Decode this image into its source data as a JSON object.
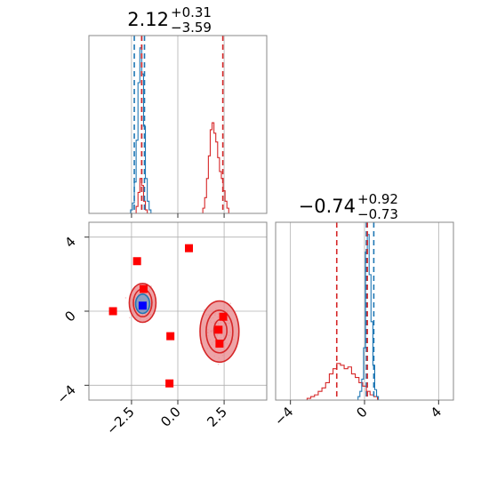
{
  "chart_data": {
    "type": "corner",
    "colors": {
      "blue": "#1f77b4",
      "red": "#d62728",
      "red_fill": "#e8858a",
      "blue_fill": "#6e9ec9"
    },
    "panels": [
      {
        "id": "hist-x",
        "type": "histogram",
        "title_main": "2.12",
        "title_sup": "+0.31",
        "title_sub": "−3.59",
        "xlim": [
          -4.8,
          4.8
        ],
        "xticks": [
          -2.5,
          0.0,
          2.5
        ],
        "gridlines_x": [
          -2.5,
          0.0,
          2.5
        ],
        "quantile_lines": {
          "blue": [
            -2.35,
            -1.95,
            -1.8
          ],
          "red": [
            -1.95,
            2.43
          ]
        },
        "hist_blue": {
          "bins": [
            [
              -2.6,
              0.0
            ],
            [
              -2.5,
              0.02
            ],
            [
              -2.4,
              0.06
            ],
            [
              -2.3,
              0.18
            ],
            [
              -2.2,
              0.42
            ],
            [
              -2.1,
              0.75
            ],
            [
              -2.0,
              0.95
            ],
            [
              -1.9,
              0.8
            ],
            [
              -1.8,
              0.5
            ],
            [
              -1.7,
              0.2
            ],
            [
              -1.6,
              0.07
            ],
            [
              -1.5,
              0.02
            ],
            [
              -1.4,
              0.0
            ]
          ]
        },
        "hist_red": {
          "bins": [
            [
              -2.3,
              0.0
            ],
            [
              -2.2,
              0.04
            ],
            [
              -2.1,
              0.12
            ],
            [
              -2.0,
              0.2
            ],
            [
              -1.9,
              0.16
            ],
            [
              -1.8,
              0.07
            ],
            [
              -1.7,
              0.02
            ],
            [
              -1.6,
              0.0
            ],
            [
              1.3,
              0.0
            ],
            [
              1.4,
              0.03
            ],
            [
              1.5,
              0.09
            ],
            [
              1.6,
              0.2
            ],
            [
              1.7,
              0.33
            ],
            [
              1.8,
              0.48
            ],
            [
              1.9,
              0.52
            ],
            [
              2.0,
              0.46
            ],
            [
              2.1,
              0.41
            ],
            [
              2.2,
              0.32
            ],
            [
              2.3,
              0.24
            ],
            [
              2.4,
              0.2
            ],
            [
              2.5,
              0.13
            ],
            [
              2.6,
              0.07
            ],
            [
              2.7,
              0.03
            ],
            [
              2.8,
              0.0
            ]
          ]
        }
      },
      {
        "id": "scatter-xy",
        "type": "2d-density",
        "xlim": [
          -4.8,
          4.8
        ],
        "ylim": [
          -4.8,
          4.8
        ],
        "xticks": [
          -2.5,
          0.0,
          2.5
        ],
        "xtick_labels": [
          "−2.5",
          "0.0",
          "2.5"
        ],
        "yticks": [
          -4,
          0,
          4
        ],
        "ytick_labels": [
          "−4",
          "0",
          "4"
        ],
        "gridlines_x": [
          -2.5,
          0.0,
          2.5
        ],
        "gridlines_y": [
          -4,
          0,
          4
        ],
        "contours": [
          {
            "color": "red",
            "cx": -1.9,
            "cy": 0.45,
            "rx": 0.72,
            "ry": 1.05,
            "fill": true
          },
          {
            "color": "red",
            "cx": -1.9,
            "cy": 0.45,
            "rx": 0.5,
            "ry": 0.75,
            "fill": false
          },
          {
            "color": "blue",
            "cx": -1.9,
            "cy": 0.4,
            "rx": 0.38,
            "ry": 0.52,
            "fill": true
          },
          {
            "color": "red",
            "cx": 2.25,
            "cy": -1.1,
            "rx": 1.05,
            "ry": 1.65,
            "fill": true
          },
          {
            "color": "red",
            "cx": 2.25,
            "cy": -1.1,
            "rx": 0.72,
            "ry": 1.15,
            "fill": false
          },
          {
            "color": "red",
            "cx": 2.3,
            "cy": -1.05,
            "rx": 0.35,
            "ry": 0.6,
            "fill": false
          }
        ],
        "markers_red": [
          [
            -3.5,
            0.0
          ],
          [
            -2.2,
            2.7
          ],
          [
            -1.85,
            1.2
          ],
          [
            -0.4,
            -1.35
          ],
          [
            0.6,
            3.4
          ],
          [
            -0.45,
            -3.9
          ],
          [
            2.45,
            -0.3
          ],
          [
            2.2,
            -1.0
          ],
          [
            2.25,
            -1.75
          ]
        ],
        "markers_blue": [
          [
            -1.9,
            0.3
          ]
        ]
      },
      {
        "id": "hist-y",
        "type": "histogram",
        "title_main": "−0.74",
        "title_sup": "+0.92",
        "title_sub": "−0.73",
        "xlim": [
          -4.8,
          4.8
        ],
        "xticks": [
          -4,
          0,
          4
        ],
        "xtick_labels": [
          "−4",
          "0",
          "4"
        ],
        "gridlines_x": [
          -4,
          0,
          4
        ],
        "quantile_lines": {
          "blue": [
            0.1,
            0.5
          ],
          "red": [
            -1.5,
            0.15
          ]
        },
        "hist_blue": {
          "bins": [
            [
              -0.4,
              0.0
            ],
            [
              -0.3,
              0.02
            ],
            [
              -0.2,
              0.05
            ],
            [
              -0.1,
              0.12
            ],
            [
              0.0,
              0.3
            ],
            [
              0.1,
              0.85
            ],
            [
              0.2,
              0.95
            ],
            [
              0.3,
              0.72
            ],
            [
              0.4,
              0.45
            ],
            [
              0.5,
              0.2
            ],
            [
              0.6,
              0.06
            ],
            [
              0.7,
              0.02
            ],
            [
              0.8,
              0.0
            ]
          ]
        },
        "hist_red": {
          "bins": [
            [
              -3.2,
              0.0
            ],
            [
              -3.0,
              0.01
            ],
            [
              -2.8,
              0.02
            ],
            [
              -2.6,
              0.03
            ],
            [
              -2.4,
              0.05
            ],
            [
              -2.2,
              0.07
            ],
            [
              -2.0,
              0.1
            ],
            [
              -1.8,
              0.15
            ],
            [
              -1.6,
              0.18
            ],
            [
              -1.4,
              0.21
            ],
            [
              -1.2,
              0.2
            ],
            [
              -1.0,
              0.18
            ],
            [
              -0.8,
              0.19
            ],
            [
              -0.6,
              0.15
            ],
            [
              -0.4,
              0.13
            ],
            [
              -0.2,
              0.1
            ],
            [
              0.0,
              0.08
            ],
            [
              0.2,
              0.05
            ],
            [
              0.4,
              0.03
            ],
            [
              0.6,
              0.02
            ],
            [
              0.8,
              0.0
            ]
          ]
        }
      }
    ]
  }
}
